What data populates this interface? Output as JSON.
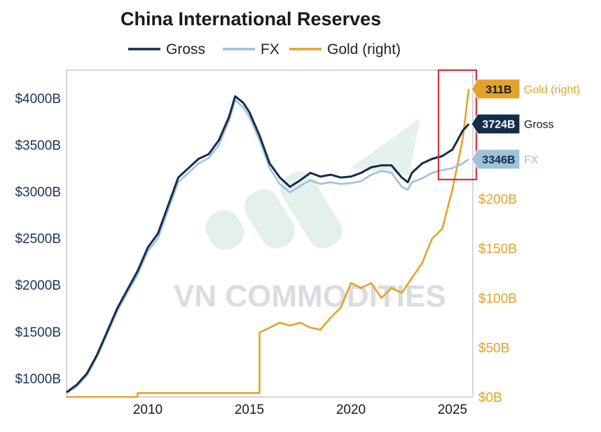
{
  "chart_data": {
    "type": "line",
    "title": "China International Reserves",
    "legend": {
      "placement": "top",
      "entries": [
        {
          "name": "Gross",
          "color": "#142c4c"
        },
        {
          "name": "FX",
          "color": "#9ec1de"
        },
        {
          "name": "Gold (right)",
          "color": "#e3a32a"
        }
      ]
    },
    "x_axis": {
      "range": [
        2006,
        2026
      ],
      "ticks": [
        2010,
        2015,
        2020,
        2025
      ],
      "tick_labels": [
        "2010",
        "2015",
        "2020",
        "2025"
      ]
    },
    "y_left": {
      "range": [
        800,
        4300
      ],
      "ticks": [
        1000,
        1500,
        2000,
        2500,
        3000,
        3500,
        4000
      ],
      "tick_labels": [
        "$1000B",
        "$1500B",
        "$2000B",
        "$2500B",
        "$3000B",
        "$3500B",
        "$4000B"
      ]
    },
    "y_right": {
      "range": [
        0,
        330
      ],
      "ticks": [
        0,
        50,
        100,
        150,
        200
      ],
      "tick_labels": [
        "$0B",
        "$50B",
        "$100B",
        "$150B",
        "$200B"
      ]
    },
    "grid": false,
    "series": [
      {
        "name": "Gross",
        "axis": "left",
        "color": "#142c4c",
        "points": [
          [
            2006.0,
            850
          ],
          [
            2006.5,
            930
          ],
          [
            2007.0,
            1050
          ],
          [
            2007.5,
            1250
          ],
          [
            2008.0,
            1500
          ],
          [
            2008.5,
            1750
          ],
          [
            2009.0,
            1950
          ],
          [
            2009.5,
            2150
          ],
          [
            2010.0,
            2400
          ],
          [
            2010.5,
            2550
          ],
          [
            2011.0,
            2850
          ],
          [
            2011.5,
            3150
          ],
          [
            2012.0,
            3250
          ],
          [
            2012.5,
            3350
          ],
          [
            2013.0,
            3400
          ],
          [
            2013.5,
            3550
          ],
          [
            2014.0,
            3800
          ],
          [
            2014.3,
            4020
          ],
          [
            2014.7,
            3950
          ],
          [
            2015.0,
            3850
          ],
          [
            2015.5,
            3600
          ],
          [
            2016.0,
            3300
          ],
          [
            2016.5,
            3150
          ],
          [
            2017.0,
            3050
          ],
          [
            2017.5,
            3120
          ],
          [
            2018.0,
            3200
          ],
          [
            2018.5,
            3160
          ],
          [
            2019.0,
            3180
          ],
          [
            2019.5,
            3150
          ],
          [
            2020.0,
            3160
          ],
          [
            2020.5,
            3200
          ],
          [
            2021.0,
            3260
          ],
          [
            2021.5,
            3280
          ],
          [
            2022.0,
            3280
          ],
          [
            2022.5,
            3150
          ],
          [
            2022.8,
            3100
          ],
          [
            2023.0,
            3200
          ],
          [
            2023.5,
            3300
          ],
          [
            2024.0,
            3350
          ],
          [
            2024.5,
            3380
          ],
          [
            2025.0,
            3450
          ],
          [
            2025.5,
            3650
          ],
          [
            2025.8,
            3724
          ]
        ]
      },
      {
        "name": "FX",
        "axis": "left",
        "color": "#9ec1de",
        "points": [
          [
            2006.0,
            840
          ],
          [
            2006.5,
            910
          ],
          [
            2007.0,
            1030
          ],
          [
            2007.5,
            1230
          ],
          [
            2008.0,
            1470
          ],
          [
            2008.5,
            1720
          ],
          [
            2009.0,
            1920
          ],
          [
            2009.5,
            2110
          ],
          [
            2010.0,
            2360
          ],
          [
            2010.5,
            2500
          ],
          [
            2011.0,
            2800
          ],
          [
            2011.5,
            3100
          ],
          [
            2012.0,
            3200
          ],
          [
            2012.5,
            3300
          ],
          [
            2013.0,
            3360
          ],
          [
            2013.5,
            3500
          ],
          [
            2014.0,
            3760
          ],
          [
            2014.3,
            3980
          ],
          [
            2014.7,
            3900
          ],
          [
            2015.0,
            3800
          ],
          [
            2015.5,
            3550
          ],
          [
            2016.0,
            3250
          ],
          [
            2016.5,
            3080
          ],
          [
            2017.0,
            2990
          ],
          [
            2017.5,
            3060
          ],
          [
            2018.0,
            3120
          ],
          [
            2018.5,
            3080
          ],
          [
            2019.0,
            3100
          ],
          [
            2019.5,
            3080
          ],
          [
            2020.0,
            3090
          ],
          [
            2020.5,
            3110
          ],
          [
            2021.0,
            3180
          ],
          [
            2021.5,
            3220
          ],
          [
            2022.0,
            3200
          ],
          [
            2022.5,
            3050
          ],
          [
            2022.8,
            3020
          ],
          [
            2023.0,
            3100
          ],
          [
            2023.5,
            3140
          ],
          [
            2024.0,
            3200
          ],
          [
            2024.5,
            3230
          ],
          [
            2025.0,
            3250
          ],
          [
            2025.5,
            3300
          ],
          [
            2025.8,
            3346
          ]
        ]
      },
      {
        "name": "Gold (right)",
        "axis": "right",
        "color": "#e3a32a",
        "points": [
          [
            2006.0,
            0
          ],
          [
            2009.5,
            0
          ],
          [
            2009.5,
            4
          ],
          [
            2015.5,
            4
          ],
          [
            2015.5,
            65
          ],
          [
            2016.0,
            70
          ],
          [
            2016.5,
            75
          ],
          [
            2017.0,
            72
          ],
          [
            2017.5,
            75
          ],
          [
            2018.0,
            70
          ],
          [
            2018.5,
            68
          ],
          [
            2019.0,
            80
          ],
          [
            2019.5,
            90
          ],
          [
            2020.0,
            115
          ],
          [
            2020.5,
            110
          ],
          [
            2021.0,
            115
          ],
          [
            2021.5,
            100
          ],
          [
            2022.0,
            110
          ],
          [
            2022.5,
            105
          ],
          [
            2023.0,
            120
          ],
          [
            2023.5,
            135
          ],
          [
            2024.0,
            160
          ],
          [
            2024.5,
            170
          ],
          [
            2025.0,
            210
          ],
          [
            2025.5,
            260
          ],
          [
            2025.8,
            311
          ]
        ]
      }
    ],
    "end_tags": [
      {
        "series": "Gold (right)",
        "value_label": "311B",
        "name_label": "Gold (right)",
        "bg": "#e3a32a",
        "fg": "#1a1a1a",
        "name_color": "#e3a32a"
      },
      {
        "series": "Gross",
        "value_label": "3724B",
        "name_label": "Gross",
        "bg": "#142c4c",
        "fg": "#ffffff",
        "name_color": "#1a1a1a"
      },
      {
        "series": "FX",
        "value_label": "3346B",
        "name_label": "FX",
        "bg": "#9ec1de",
        "fg": "#142c4c",
        "name_color": "#9ec1de"
      }
    ],
    "highlight_box": {
      "x_range": [
        2025.0,
        2026.0
      ],
      "color": "#d0343a"
    }
  },
  "watermark": {
    "text": "VN COMMODITIES",
    "color": "#d9dde2",
    "shape_color": "#cfe7dc"
  }
}
